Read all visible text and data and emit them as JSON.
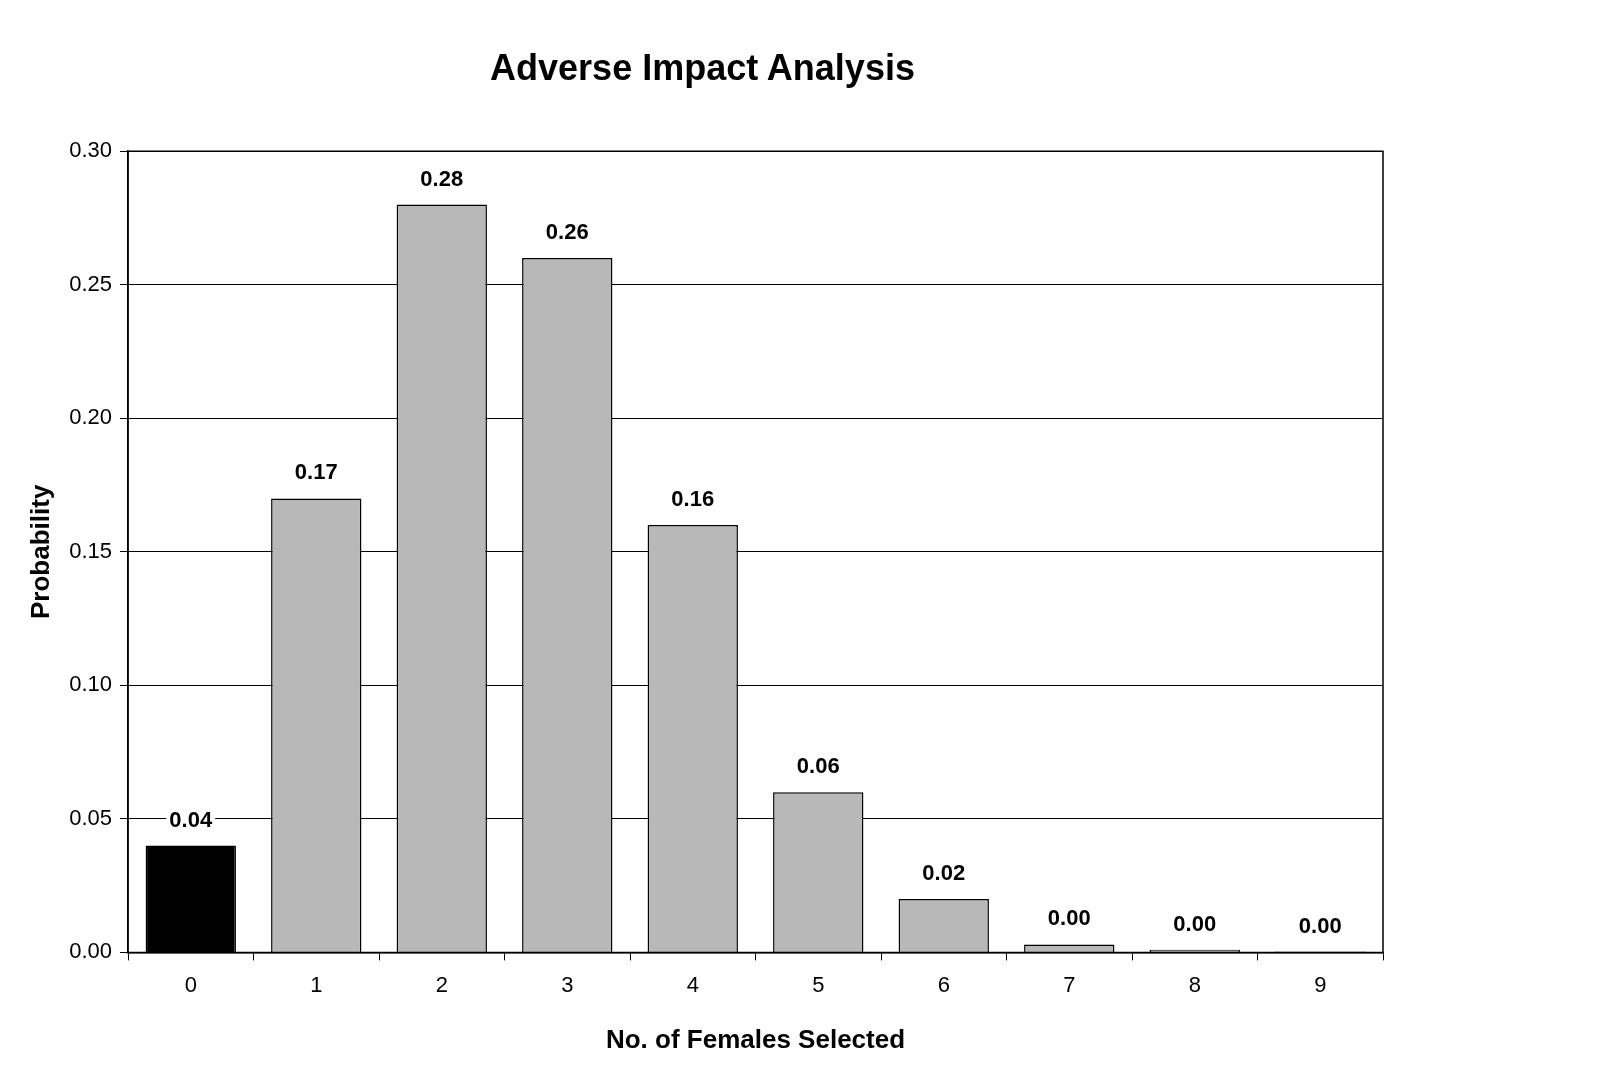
{
  "chart_data": {
    "type": "bar",
    "title": "Adverse Impact Analysis",
    "xlabel": "No. of Females Selected",
    "ylabel": "Probability",
    "categories": [
      "0",
      "1",
      "2",
      "3",
      "4",
      "5",
      "6",
      "7",
      "8",
      "9"
    ],
    "values": [
      0.04,
      0.17,
      0.28,
      0.26,
      0.16,
      0.06,
      0.02,
      0.003,
      0.001,
      0.0003
    ],
    "colors": [
      "#000000",
      "#b8b8b8",
      "#b8b8b8",
      "#b8b8b8",
      "#b8b8b8",
      "#b8b8b8",
      "#b8b8b8",
      "#b8b8b8",
      "#b8b8b8",
      "#b8b8b8"
    ],
    "value_labels": [
      "0.04",
      "0.17",
      "0.28",
      "0.26",
      "0.16",
      "0.06",
      "0.02",
      "0.00",
      "0.00",
      "0.00"
    ],
    "ylim": [
      0,
      0.3
    ],
    "yticks": [
      {
        "value": 0,
        "label": "0.00"
      },
      {
        "value": 0.05,
        "label": "0.05"
      },
      {
        "value": 0.1,
        "label": "0.10"
      },
      {
        "value": 0.15,
        "label": "0.15"
      },
      {
        "value": 0.2,
        "label": "0.20"
      },
      {
        "value": 0.25,
        "label": "0.25"
      },
      {
        "value": 0.3,
        "label": "0.30"
      }
    ],
    "grid": "y",
    "legend": false
  }
}
